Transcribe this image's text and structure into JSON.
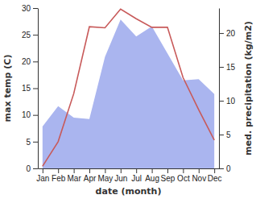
{
  "chart_data": {
    "type": "line",
    "categories": [
      "Jan",
      "Feb",
      "Mar",
      "Apr",
      "May",
      "Jun",
      "Jul",
      "Aug",
      "Sep",
      "Oct",
      "Nov",
      "Dec"
    ],
    "x_label": "date (month)",
    "y_label": "max temp (C)",
    "y2_label": "med. precipitation (kg/m2)",
    "series": [
      {
        "name": "med. precipitation",
        "type": "area",
        "axis": "y2",
        "color": "#aab5ef",
        "values": [
          6.2,
          9.2,
          7.5,
          7.3,
          16.5,
          22,
          19.5,
          21,
          17,
          13,
          13.2,
          11
        ]
      },
      {
        "name": "max temp",
        "type": "line",
        "color": "#c85a5a",
        "values": [
          0.4,
          5,
          14,
          26.5,
          26.3,
          29.8,
          28,
          26.4,
          26.4,
          17,
          11,
          5.3
        ]
      }
    ],
    "ylim": [
      0,
      30
    ],
    "yticks": [
      0,
      5,
      10,
      15,
      20,
      25,
      30
    ],
    "y2lim": [
      0,
      23.7
    ],
    "y2ticks": [
      0,
      5,
      10,
      15,
      20
    ]
  }
}
